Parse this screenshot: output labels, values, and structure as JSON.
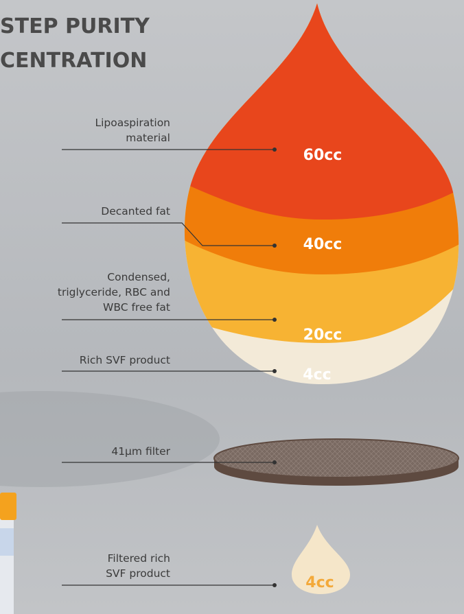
{
  "header": {
    "title_lines": [
      "STEP PURITY",
      "CENTRATION"
    ]
  },
  "layers": [
    {
      "label_lines": [
        "Lipoaspiration",
        "material"
      ],
      "volume": "60cc"
    },
    {
      "label_lines": [
        "Decanted fat"
      ],
      "volume": "40cc"
    },
    {
      "label_lines": [
        "Condensed,",
        "triglyceride, RBC and",
        "WBC free fat"
      ],
      "volume": "20cc"
    },
    {
      "label_lines": [
        "Rich SVF product"
      ],
      "volume": "4cc"
    }
  ],
  "filter": {
    "label_lines": [
      "41µm filter"
    ]
  },
  "product": {
    "label_lines": [
      "Filtered rich",
      "SVF product"
    ],
    "volume": "4cc"
  }
}
